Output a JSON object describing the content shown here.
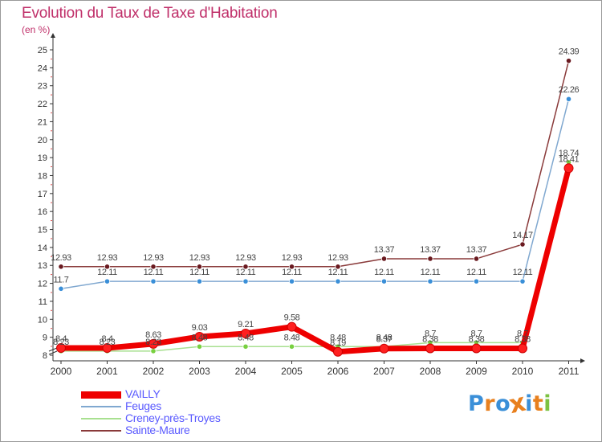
{
  "title": "Evolution du Taux de Taxe d'Habitation",
  "subtitle": "(en %)",
  "logo": {
    "letters": [
      "P",
      "r",
      "o",
      "x",
      "i",
      "t",
      "i"
    ],
    "colors": [
      "#3a8fd8",
      "#e8801e",
      "#3a8fd8",
      "#e8801e",
      "#3a8fd8",
      "#e8801e",
      "#7cc242"
    ]
  },
  "chart_data": {
    "type": "line",
    "title": "Evolution du Taux de Taxe d'Habitation",
    "subtitle": "(en %)",
    "x": [
      "2000",
      "2001",
      "2002",
      "2003",
      "2004",
      "2005",
      "2006",
      "2007",
      "2008",
      "2009",
      "2010",
      "2011"
    ],
    "y_ticks": [
      "8",
      "9",
      "10",
      "11",
      "12",
      "13",
      "14",
      "15",
      "16",
      "17",
      "18",
      "19",
      "20",
      "21",
      "22",
      "23",
      "24",
      "25"
    ],
    "ylim": [
      8,
      25
    ],
    "grid": false,
    "legend_position": "bottom-left",
    "series": [
      {
        "name": "VAILLY",
        "color": "#ee0000",
        "marker_color": "#ff2020",
        "values": [
          8.4,
          8.4,
          8.63,
          9.03,
          9.21,
          9.58,
          8.19,
          8.37,
          8.38,
          8.38,
          8.38,
          18.41
        ],
        "labels": [
          "8.4",
          "8.4",
          "8.63",
          "9.03",
          "9.21",
          "9.58",
          "8.19",
          "8.37",
          "8.38",
          "8.38",
          "8.38",
          "18.41"
        ]
      },
      {
        "name": "Feuges",
        "color": "#80a8d0",
        "marker_color": "#3a8fd8",
        "values": [
          11.7,
          12.11,
          12.11,
          12.11,
          12.11,
          12.11,
          12.11,
          12.11,
          12.11,
          12.11,
          12.11,
          22.26
        ],
        "labels": [
          "11.7",
          "12.11",
          "12.11",
          "12.11",
          "12.11",
          "12.11",
          "12.11",
          "12.11",
          "12.11",
          "12.11",
          "12.11",
          "22.26"
        ]
      },
      {
        "name": "Creney-près-Troyes",
        "color": "#a8e090",
        "marker_color": "#78d040",
        "values": [
          8.23,
          8.23,
          8.23,
          8.48,
          8.48,
          8.48,
          8.48,
          8.48,
          8.7,
          8.7,
          8.7,
          18.74
        ],
        "labels": [
          "8.23",
          "8.23",
          "8.23",
          "8.48",
          "8.48",
          "8.48",
          "8.48",
          "8.48",
          "8.7",
          "8.7",
          "8.7",
          "18.74"
        ]
      },
      {
        "name": "Sainte-Maure",
        "color": "#8a3a3a",
        "marker_color": "#6a1a20",
        "values": [
          12.93,
          12.93,
          12.93,
          12.93,
          12.93,
          12.93,
          12.93,
          13.37,
          13.37,
          13.37,
          14.17,
          24.39
        ],
        "labels": [
          "12.93",
          "12.93",
          "12.93",
          "12.93",
          "12.93",
          "12.93",
          "12.93",
          "13.37",
          "13.37",
          "13.37",
          "14.17",
          "24.39"
        ]
      }
    ]
  }
}
